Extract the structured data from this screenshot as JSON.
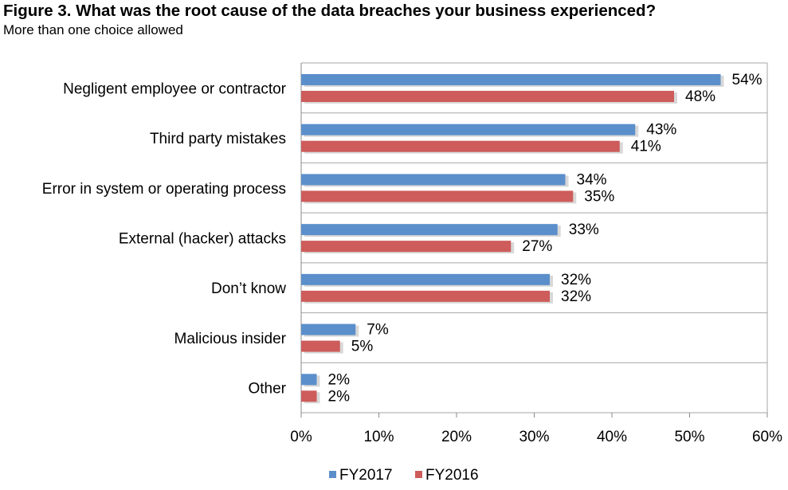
{
  "chart_data": {
    "type": "bar",
    "orientation": "horizontal",
    "title": "Figure 3. What was the root cause of the data breaches your business experienced?",
    "subtitle": "More than one choice allowed",
    "categories": [
      "Negligent employee or contractor",
      "Third party mistakes",
      "Error in system or operating process",
      "External (hacker) attacks",
      "Don’t know",
      "Malicious insider",
      "Other"
    ],
    "series": [
      {
        "name": "FY2017",
        "color": "#5b8fcb",
        "values": [
          54,
          43,
          34,
          33,
          32,
          7,
          2
        ]
      },
      {
        "name": "FY2016",
        "color": "#cd5c5a",
        "values": [
          48,
          41,
          35,
          27,
          32,
          5,
          2
        ]
      }
    ],
    "value_suffix": "%",
    "xlim": [
      0,
      60
    ],
    "xticks": [
      0,
      10,
      20,
      30,
      40,
      50,
      60
    ],
    "xtick_labels": [
      "0%",
      "10%",
      "20%",
      "30%",
      "40%",
      "50%",
      "60%"
    ],
    "grid": true,
    "legend_position": "bottom"
  }
}
